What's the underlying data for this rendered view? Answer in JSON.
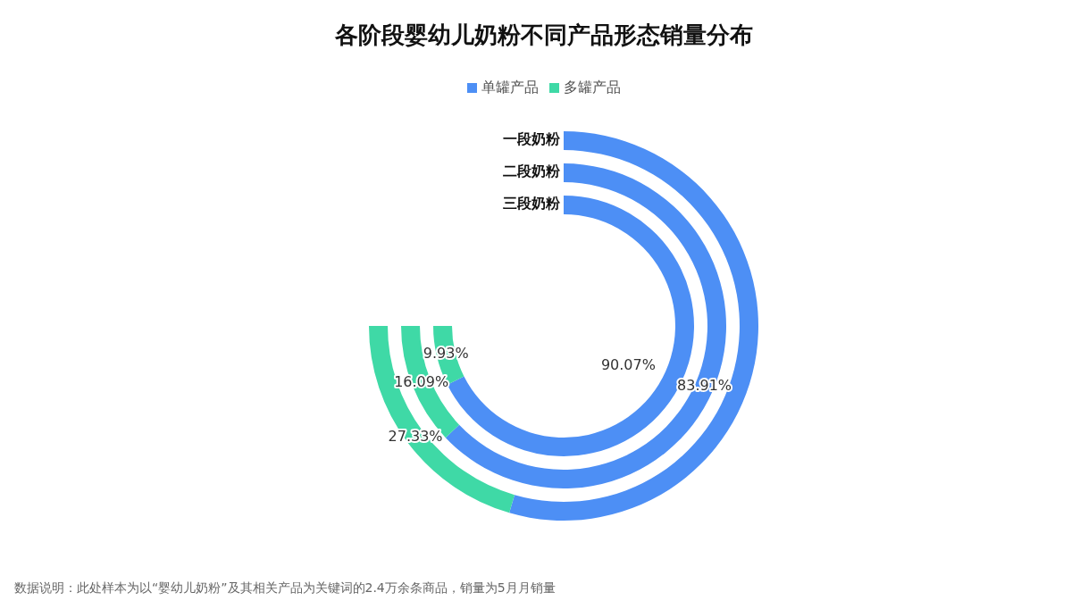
{
  "chart_data": {
    "type": "donut",
    "title": "各阶段婴幼儿奶粉不同产品形态销量分布",
    "legend": "top",
    "categories": [
      "单罐产品",
      "多罐产品"
    ],
    "colors": [
      "#4d8ff5",
      "#3fd9a6"
    ],
    "series": [
      {
        "name": "一段奶粉",
        "values": [
          72.67,
          27.33
        ],
        "value_labels": [
          null,
          "27.33%"
        ]
      },
      {
        "name": "二段奶粉",
        "values": [
          83.91,
          16.09
        ],
        "value_labels": [
          "83.91%",
          "16.09%"
        ]
      },
      {
        "name": "三段奶粉",
        "values": [
          90.07,
          9.93
        ],
        "value_labels": [
          "90.07%",
          "9.93%"
        ]
      }
    ],
    "annotations": [
      "数据说明：此处样本为以“婴幼儿奶粉”及其相关产品为关键词的2.4万余条商品，销量为5月月销量"
    ]
  }
}
